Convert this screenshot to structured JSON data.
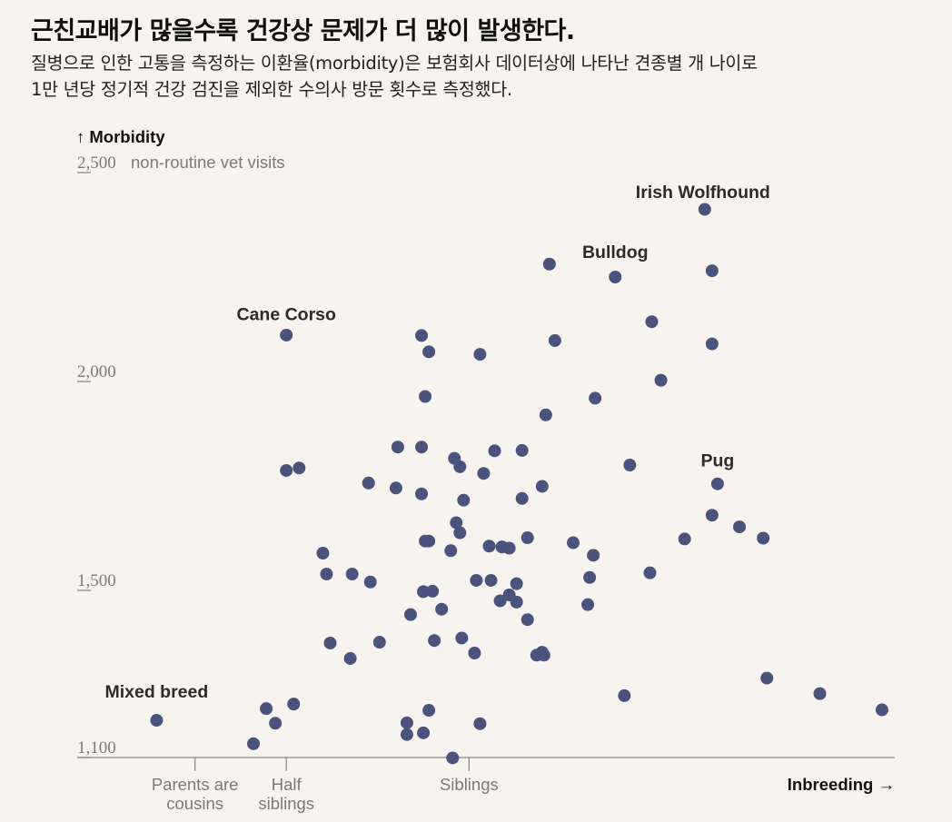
{
  "header": {
    "title": "근친교배가 많을수록 건강상 문제가 더 많이 발생한다.",
    "subtitle_lines": [
      "질병으로 인한 고통을 측정하는 이환율(morbidity)은 보험회사 데이터상에 나타난 견종별 개 나이로",
      "1만 년당 정기적 건강 검진을 제외한 수의사 방문 횟수로 측정했다."
    ]
  },
  "chart_data": {
    "type": "scatter",
    "ylabel": "↑ Morbidity",
    "xlabel": "Inbreeding →",
    "ylim": [
      1100,
      2500
    ],
    "xlim": [
      0,
      44
    ],
    "y_ticks": [
      {
        "value": 2500,
        "label": "2,500",
        "note": "non-routine vet visits"
      },
      {
        "value": 2000,
        "label": "2,000",
        "note": ""
      },
      {
        "value": 1500,
        "label": "1,500",
        "note": ""
      },
      {
        "value": 1100,
        "label": "1,100",
        "note": ""
      }
    ],
    "x_ticks": [
      {
        "value": 5.7,
        "label": [
          "Parents are",
          "cousins"
        ]
      },
      {
        "value": 10.7,
        "label": [
          "Half",
          "siblings"
        ]
      },
      {
        "value": 20.7,
        "label": [
          "Siblings"
        ]
      }
    ],
    "annotations": [
      {
        "label": "Irish Wolfhound",
        "x": 33.5,
        "y": 2400
      },
      {
        "label": "Bulldog",
        "x": 28.7,
        "y": 2256
      },
      {
        "label": "Cane Corso",
        "x": 10.7,
        "y": 2108
      },
      {
        "label": "Pug",
        "x": 34.3,
        "y": 1758
      },
      {
        "label": "Mixed breed",
        "x": 3.6,
        "y": 1204
      }
    ],
    "points": [
      [
        3.6,
        1189
      ],
      [
        8.9,
        1133
      ],
      [
        9.6,
        1217
      ],
      [
        10.1,
        1182
      ],
      [
        11.1,
        1228
      ],
      [
        10.7,
        2111
      ],
      [
        10.7,
        1787
      ],
      [
        11.4,
        1793
      ],
      [
        12.7,
        1589
      ],
      [
        12.9,
        1539
      ],
      [
        13.1,
        1374
      ],
      [
        14.2,
        1337
      ],
      [
        14.3,
        1539
      ],
      [
        15.2,
        1757
      ],
      [
        15.8,
        1376
      ],
      [
        15.3,
        1520
      ],
      [
        16.7,
        1745
      ],
      [
        17.3,
        1183
      ],
      [
        17.3,
        1155
      ],
      [
        17.5,
        1442
      ],
      [
        16.8,
        1843
      ],
      [
        18.2,
        1497
      ],
      [
        18.1,
        2110
      ],
      [
        18.1,
        1843
      ],
      [
        18.1,
        1731
      ],
      [
        18.3,
        1964
      ],
      [
        18.5,
        2071
      ],
      [
        18.3,
        1618
      ],
      [
        18.5,
        1618
      ],
      [
        18.2,
        1159
      ],
      [
        18.5,
        1213
      ],
      [
        18.7,
        1498
      ],
      [
        18.8,
        1380
      ],
      [
        19.2,
        1455
      ],
      [
        19.8,
        1099
      ],
      [
        19.7,
        1595
      ],
      [
        20.0,
        1662
      ],
      [
        20.2,
        1638
      ],
      [
        20.2,
        1796
      ],
      [
        20.4,
        1716
      ],
      [
        20.3,
        1386
      ],
      [
        19.9,
        1816
      ],
      [
        21.0,
        1350
      ],
      [
        21.1,
        1524
      ],
      [
        21.3,
        2065
      ],
      [
        21.5,
        1780
      ],
      [
        21.3,
        1181
      ],
      [
        21.8,
        1606
      ],
      [
        21.9,
        1524
      ],
      [
        22.1,
        1834
      ],
      [
        22.5,
        1604
      ],
      [
        22.9,
        1601
      ],
      [
        22.4,
        1475
      ],
      [
        22.9,
        1489
      ],
      [
        23.3,
        1516
      ],
      [
        23.3,
        1472
      ],
      [
        23.6,
        1835
      ],
      [
        23.6,
        1720
      ],
      [
        23.9,
        1626
      ],
      [
        23.9,
        1430
      ],
      [
        24.4,
        1345
      ],
      [
        24.7,
        1352
      ],
      [
        24.8,
        1345
      ],
      [
        24.7,
        1749
      ],
      [
        24.9,
        1920
      ],
      [
        25.1,
        2281
      ],
      [
        25.4,
        2098
      ],
      [
        26.4,
        1614
      ],
      [
        27.2,
        1466
      ],
      [
        27.3,
        1531
      ],
      [
        27.5,
        1584
      ],
      [
        27.6,
        1960
      ],
      [
        28.7,
        2250
      ],
      [
        29.2,
        1248
      ],
      [
        29.5,
        1800
      ],
      [
        30.6,
        1542
      ],
      [
        30.7,
        2143
      ],
      [
        31.2,
        2003
      ],
      [
        32.5,
        1623
      ],
      [
        33.6,
        2412
      ],
      [
        34.0,
        2265
      ],
      [
        34.0,
        1680
      ],
      [
        34.0,
        2090
      ],
      [
        34.3,
        1755
      ],
      [
        35.5,
        1652
      ],
      [
        36.8,
        1625
      ],
      [
        37.0,
        1290
      ],
      [
        39.9,
        1253
      ],
      [
        43.3,
        1214
      ]
    ]
  }
}
